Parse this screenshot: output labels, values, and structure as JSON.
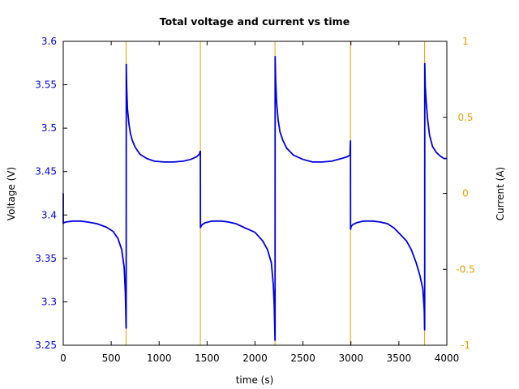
{
  "chart_data": {
    "type": "line",
    "title": "Total voltage and current vs time",
    "xlabel": "time (s)",
    "ylabel": "Voltage (V)",
    "y2label": "Current (A)",
    "xlim": [
      0,
      4000
    ],
    "ylim": [
      3.25,
      3.6
    ],
    "y2lim": [
      -1,
      1
    ],
    "x_ticks": [
      "0",
      "500",
      "1000",
      "1500",
      "2000",
      "2500",
      "3000",
      "3500",
      "4000"
    ],
    "y_ticks": [
      "3.25",
      "3.3",
      "3.35",
      "3.4",
      "3.45",
      "3.5",
      "3.55",
      "3.6"
    ],
    "y2_ticks": [
      "-1",
      "-0.5",
      "0",
      "0.5",
      "1"
    ],
    "grid": false,
    "colors": {
      "voltage": "#0000e0",
      "current": "#e8a000",
      "axis": "#000000"
    },
    "series": [
      {
        "axis": "left",
        "color": "#0000e0",
        "x": [
          0,
          0,
          5,
          30,
          100,
          180,
          250,
          350,
          450,
          520,
          570,
          610,
          635,
          648,
          655,
          656,
          657,
          662,
          670,
          685,
          700,
          720,
          750,
          800,
          870,
          950,
          1050,
          1150,
          1250,
          1330,
          1390,
          1420,
          1430,
          1431,
          1433,
          1437,
          1450,
          1480,
          1550,
          1650,
          1720,
          1800,
          1900,
          2000,
          2080,
          2130,
          2170,
          2190,
          2200,
          2208,
          2209,
          2210,
          2215,
          2225,
          2240,
          2260,
          2290,
          2330,
          2400,
          2500,
          2600,
          2700,
          2800,
          2900,
          2960,
          2990,
          2995,
          2996,
          2998,
          3005,
          3020,
          3060,
          3130,
          3230,
          3300,
          3380,
          3450,
          3520,
          3580,
          3630,
          3680,
          3720,
          3750,
          3765,
          3768,
          3769,
          3770,
          3775,
          3785,
          3800,
          3820,
          3850,
          3890,
          3930,
          3970,
          4000
        ],
        "values": [
          3.425,
          3.39,
          3.391,
          3.392,
          3.393,
          3.393,
          3.392,
          3.39,
          3.386,
          3.381,
          3.373,
          3.36,
          3.34,
          3.31,
          3.27,
          3.27,
          3.574,
          3.545,
          3.522,
          3.505,
          3.494,
          3.486,
          3.478,
          3.47,
          3.465,
          3.462,
          3.461,
          3.461,
          3.462,
          3.464,
          3.467,
          3.47,
          3.474,
          3.385,
          3.386,
          3.387,
          3.389,
          3.391,
          3.393,
          3.393,
          3.392,
          3.39,
          3.385,
          3.38,
          3.37,
          3.36,
          3.345,
          3.32,
          3.295,
          3.256,
          3.256,
          3.583,
          3.556,
          3.53,
          3.51,
          3.496,
          3.486,
          3.477,
          3.469,
          3.464,
          3.461,
          3.461,
          3.462,
          3.465,
          3.467,
          3.469,
          3.486,
          3.383,
          3.385,
          3.387,
          3.389,
          3.391,
          3.393,
          3.393,
          3.392,
          3.39,
          3.385,
          3.377,
          3.37,
          3.36,
          3.345,
          3.33,
          3.315,
          3.29,
          3.268,
          3.268,
          3.575,
          3.548,
          3.53,
          3.51,
          3.492,
          3.479,
          3.472,
          3.468,
          3.465,
          3.465
        ]
      },
      {
        "axis": "right",
        "color": "#e8a000",
        "x": [
          655,
          655,
          1430,
          1430,
          2208,
          2208,
          2995,
          2995,
          3768,
          3768
        ],
        "values": [
          -1,
          1,
          -1,
          1,
          -1,
          1,
          -1,
          1,
          -1,
          1
        ]
      }
    ]
  }
}
